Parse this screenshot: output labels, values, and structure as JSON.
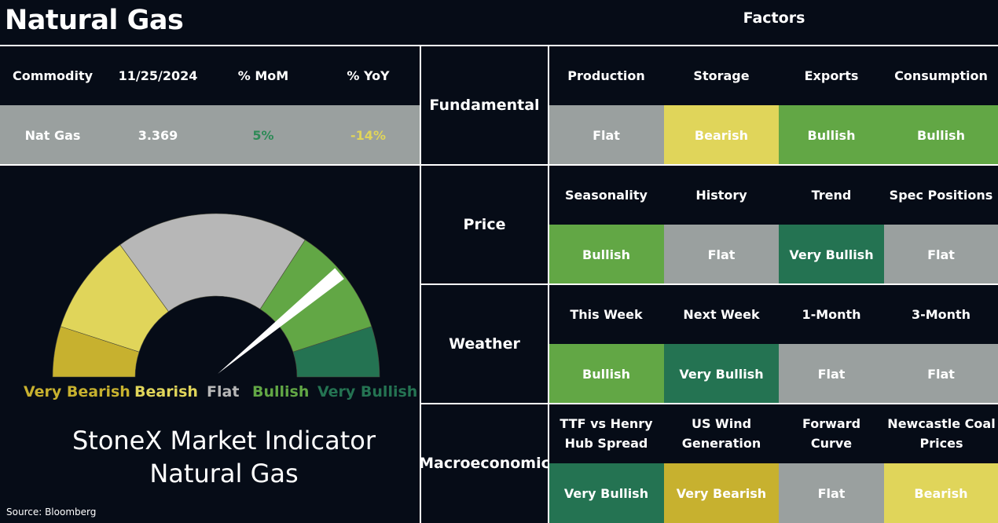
{
  "page": {
    "title": "Natural Gas",
    "factors_title": "Factors",
    "source": "Source: Bloomberg"
  },
  "commodity_table": {
    "headers": [
      "Commodity",
      "11/25/2024",
      "% MoM",
      "% YoY"
    ],
    "row": {
      "name": "Nat Gas",
      "price": "3.369",
      "mom": "5%",
      "yoy": "-14%"
    },
    "colors": {
      "mom": "#2e8a57",
      "yoy": "#e0d55a"
    }
  },
  "gauge": {
    "legend": [
      {
        "label": "Very Bearish",
        "color": "#c7b12f"
      },
      {
        "label": "Bearish",
        "color": "#e0d55a"
      },
      {
        "label": "Flat",
        "color": "#b7b7b7"
      },
      {
        "label": "Bullish",
        "color": "#62a745"
      },
      {
        "label": "Very Bullish",
        "color": "#247352"
      }
    ],
    "title_line1": "StoneX Market Indicator",
    "title_line2": "Natural Gas"
  },
  "factors": [
    {
      "category": "Fundamental",
      "items": [
        {
          "label": "Production",
          "value": "Flat"
        },
        {
          "label": "Storage",
          "value": "Bearish"
        },
        {
          "label": "Exports",
          "value": "Bullish"
        },
        {
          "label": "Consumption",
          "value": "Bullish"
        }
      ]
    },
    {
      "category": "Price",
      "items": [
        {
          "label": "Seasonality",
          "value": "Bullish"
        },
        {
          "label": "History",
          "value": "Flat"
        },
        {
          "label": "Trend",
          "value": "Very Bullish"
        },
        {
          "label": "Spec Positions",
          "value": "Flat"
        }
      ]
    },
    {
      "category": "Weather",
      "items": [
        {
          "label": "This Week",
          "value": "Bullish"
        },
        {
          "label": "Next Week",
          "value": "Very Bullish"
        },
        {
          "label": "1-Month",
          "value": "Flat"
        },
        {
          "label": "3-Month",
          "value": "Flat"
        }
      ]
    },
    {
      "category": "Macroeconomic",
      "items": [
        {
          "label": "TTF vs Henry Hub Spread",
          "value": "Very Bullish"
        },
        {
          "label": "US Wind Generation",
          "value": "Very Bearish"
        },
        {
          "label": "Forward Curve",
          "value": "Flat"
        },
        {
          "label": "Newcastle Coal Prices",
          "value": "Bearish"
        }
      ]
    }
  ]
}
